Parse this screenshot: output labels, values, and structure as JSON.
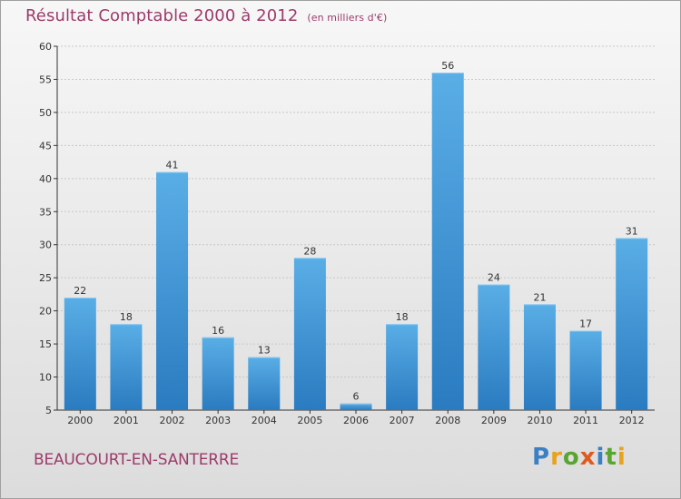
{
  "page": {
    "commune": "BEAUCOURT-EN-SANTERRE",
    "logo_text": "Proxiti"
  },
  "colors": {
    "title": "#9c3b6a",
    "bar_top": "#5aaee6",
    "bar_bottom": "#2a7bc0",
    "grid": "#c8c8c8",
    "axis": "#333333"
  },
  "chart_data": {
    "type": "bar",
    "title": "Résultat Comptable 2000 à 2012",
    "subtitle": "(en milliers d'€)",
    "xlabel": "",
    "ylabel": "",
    "categories": [
      "2000",
      "2001",
      "2002",
      "2003",
      "2004",
      "2005",
      "2006",
      "2007",
      "2008",
      "2009",
      "2010",
      "2011",
      "2012"
    ],
    "values": [
      22,
      18,
      41,
      16,
      13,
      28,
      6,
      18,
      56,
      24,
      21,
      17,
      31
    ],
    "ylim": [
      5,
      60
    ],
    "yticks": [
      5,
      10,
      15,
      20,
      25,
      30,
      35,
      40,
      45,
      50,
      55,
      60
    ],
    "grid": true,
    "legend": "none"
  }
}
